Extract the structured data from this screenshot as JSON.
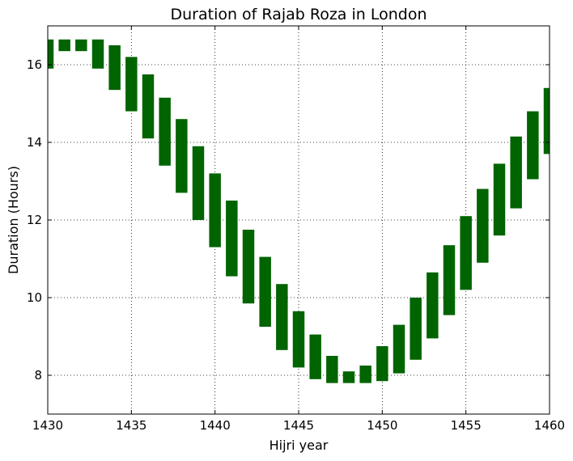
{
  "chart_data": {
    "type": "bar",
    "title": "Duration of Rajab Roza in London",
    "xlabel": "Hijri year",
    "ylabel": "Duration (Hours)",
    "xlim": [
      1430,
      1460
    ],
    "ylim": [
      7,
      17
    ],
    "xticks": [
      "1430",
      "1435",
      "1440",
      "1445",
      "1450",
      "1455",
      "1460"
    ],
    "yticks": [
      "8",
      "10",
      "12",
      "14",
      "16"
    ],
    "grid": true,
    "bar_color": "#006400",
    "bars": [
      {
        "x": 1430,
        "low": 15.9,
        "high": 16.65
      },
      {
        "x": 1431,
        "low": 16.35,
        "high": 16.65
      },
      {
        "x": 1432,
        "low": 16.35,
        "high": 16.65
      },
      {
        "x": 1433,
        "low": 15.9,
        "high": 16.65
      },
      {
        "x": 1434,
        "low": 15.35,
        "high": 16.5
      },
      {
        "x": 1435,
        "low": 14.8,
        "high": 16.2
      },
      {
        "x": 1436,
        "low": 14.1,
        "high": 15.75
      },
      {
        "x": 1437,
        "low": 13.4,
        "high": 15.15
      },
      {
        "x": 1438,
        "low": 12.7,
        "high": 14.6
      },
      {
        "x": 1439,
        "low": 12.0,
        "high": 13.9
      },
      {
        "x": 1440,
        "low": 11.3,
        "high": 13.2
      },
      {
        "x": 1441,
        "low": 10.55,
        "high": 12.5
      },
      {
        "x": 1442,
        "low": 9.85,
        "high": 11.75
      },
      {
        "x": 1443,
        "low": 9.25,
        "high": 11.05
      },
      {
        "x": 1444,
        "low": 8.65,
        "high": 10.35
      },
      {
        "x": 1445,
        "low": 8.2,
        "high": 9.65
      },
      {
        "x": 1446,
        "low": 7.9,
        "high": 9.05
      },
      {
        "x": 1447,
        "low": 7.8,
        "high": 8.5
      },
      {
        "x": 1448,
        "low": 7.8,
        "high": 8.1
      },
      {
        "x": 1449,
        "low": 7.8,
        "high": 8.25
      },
      {
        "x": 1450,
        "low": 7.85,
        "high": 8.75
      },
      {
        "x": 1451,
        "low": 8.05,
        "high": 9.3
      },
      {
        "x": 1452,
        "low": 8.4,
        "high": 10.0
      },
      {
        "x": 1453,
        "low": 8.95,
        "high": 10.65
      },
      {
        "x": 1454,
        "low": 9.55,
        "high": 11.35
      },
      {
        "x": 1455,
        "low": 10.2,
        "high": 12.1
      },
      {
        "x": 1456,
        "low": 10.9,
        "high": 12.8
      },
      {
        "x": 1457,
        "low": 11.6,
        "high": 13.45
      },
      {
        "x": 1458,
        "low": 12.3,
        "high": 14.15
      },
      {
        "x": 1459,
        "low": 13.05,
        "high": 14.8
      },
      {
        "x": 1460,
        "low": 13.7,
        "high": 15.4
      }
    ]
  }
}
